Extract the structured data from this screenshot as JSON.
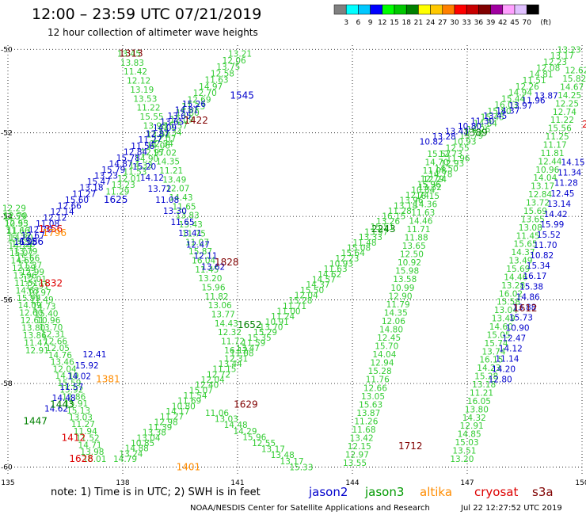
{
  "chart_data": {
    "type": "scatter",
    "title": "12:00 – 23:59 UTC 07/21/2019",
    "subtitle": "12 hour collection of altimeter wave heights",
    "color_scale": {
      "labels": [
        "3",
        "6",
        "9",
        "12",
        "15",
        "18",
        "21",
        "24",
        "27",
        "30",
        "33",
        "36",
        "39",
        "42",
        "45",
        "70"
      ],
      "unit": "(ft)",
      "colors": [
        "#808080",
        "#00ffff",
        "#00c8ff",
        "#0000ff",
        "#00ff00",
        "#00c800",
        "#008000",
        "#ffff00",
        "#ffc800",
        "#ff8000",
        "#ff0000",
        "#c80000",
        "#800000",
        "#a000a0",
        "#ffa0ff",
        "#e0c0ff",
        "#000000"
      ]
    },
    "x_ticks": [
      "135",
      "138",
      "141",
      "144",
      "147",
      "150"
    ],
    "y_ticks": [
      "-50",
      "-52",
      "-54",
      "-56",
      "-58",
      "-60"
    ],
    "xlim": [
      135,
      150
    ],
    "ylim": [
      -60.2,
      -49.9
    ],
    "grid": true,
    "series": [
      {
        "name": "jason2",
        "color": "#0000cc"
      },
      {
        "name": "jason3",
        "color": "#009900"
      },
      {
        "name": "altika",
        "color": "#ff8c00"
      },
      {
        "name": "cryosat",
        "color": "#dd0000"
      },
      {
        "name": "s3a",
        "color": "#800000"
      }
    ],
    "note": "note: 1) Time is in UTC; 2) SWH is in feet",
    "footer_left": "NOAA/NESDIS Center for Satellite Applications and Research",
    "footer_right": "Jul 22 12:27:52 UTC 2019"
  }
}
